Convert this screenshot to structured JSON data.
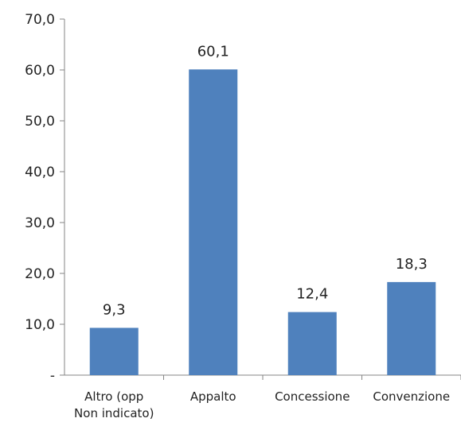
{
  "chart_data": {
    "type": "bar",
    "categories": [
      "Altro (opp Non indicato)",
      "Appalto",
      "Concessione",
      "Convenzione"
    ],
    "category_lines": [
      [
        "Altro (opp",
        "Non indicato)"
      ],
      [
        "Appalto"
      ],
      [
        "Concessione"
      ],
      [
        "Convenzione"
      ]
    ],
    "values": [
      9.3,
      60.1,
      12.4,
      18.3
    ],
    "value_labels": [
      "9,3",
      "60,1",
      "12,4",
      "18,3"
    ],
    "ylim": [
      0,
      70
    ],
    "yticks": [
      0,
      10,
      20,
      30,
      40,
      50,
      60,
      70
    ],
    "ytick_labels": [
      "-",
      "10,0",
      "20,0",
      "30,0",
      "40,0",
      "50,0",
      "60,0",
      "70,0"
    ],
    "grid": false,
    "legend": "none",
    "colors": {
      "bar": "#4f81bd",
      "axis": "#868686",
      "text": "#222222"
    }
  }
}
